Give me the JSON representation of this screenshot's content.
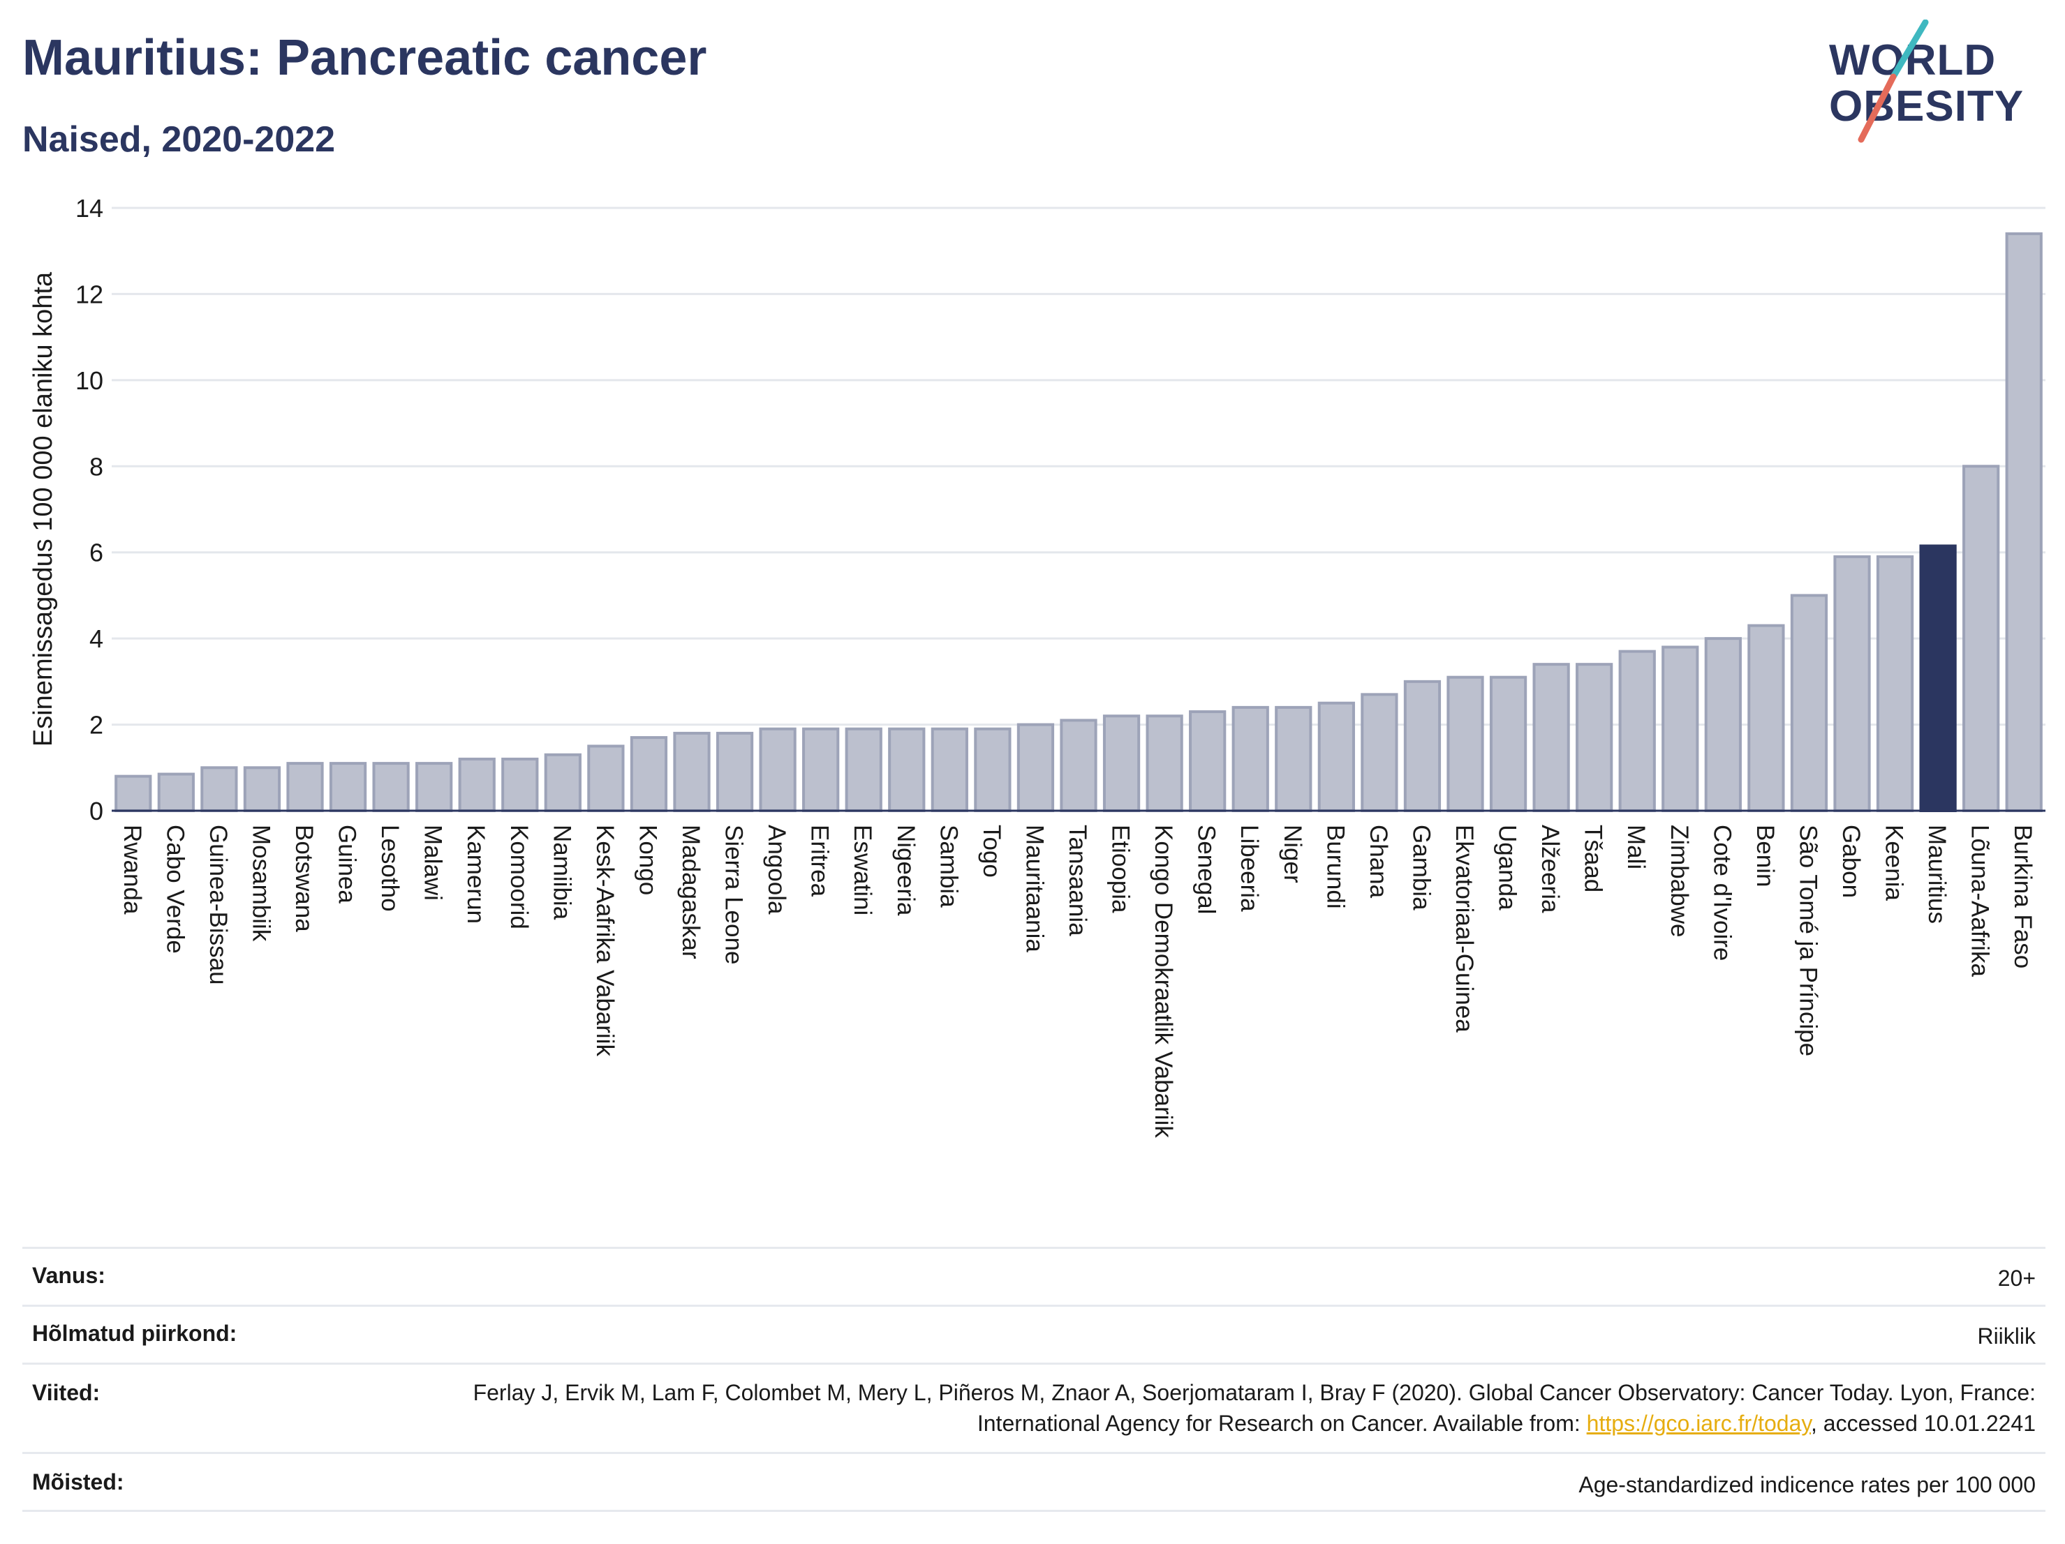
{
  "header": {
    "title": "Mauritius: Pancreatic cancer",
    "subtitle": "Naised, 2020-2022"
  },
  "logo": {
    "line1": "WORLD",
    "line2": "OBESITY"
  },
  "colors": {
    "bar_fill": "#bcc0ce",
    "bar_stroke": "#9da3b8",
    "highlight": "#2b3660",
    "title": "#2b3660",
    "logo_slash_teal": "#3fb8c0",
    "logo_slash_coral": "#e46b5a"
  },
  "chart_data": {
    "type": "bar",
    "ylabel": "Esinemissagedus 100 000 elaniku kohta",
    "ylim": [
      0,
      14
    ],
    "yticks": [
      0,
      2,
      4,
      6,
      8,
      10,
      12,
      14
    ],
    "grid": true,
    "highlight": "Mauritius",
    "categories": [
      "Rwanda",
      "Cabo Verde",
      "Guinea-Bissau",
      "Mosambiik",
      "Botswana",
      "Guinea",
      "Lesotho",
      "Malawi",
      "Kamerun",
      "Komoorid",
      "Namiibia",
      "Kesk-Aafrika Vabariik",
      "Kongo",
      "Madagaskar",
      "Sierra Leone",
      "Angoola",
      "Eritrea",
      "Eswatini",
      "Nigeeria",
      "Sambia",
      "Togo",
      "Mauritaania",
      "Tansaania",
      "Etioopia",
      "Kongo Demokraatlik Vabariik",
      "Senegal",
      "Libeeria",
      "Niger",
      "Burundi",
      "Ghana",
      "Gambia",
      "Ekvatoriaal-Guinea",
      "Uganda",
      "Alžeeria",
      "Tšaad",
      "Mali",
      "Zimbabwe",
      "Cote d'Ivoire",
      "Benin",
      "São Tomé ja Príncipe",
      "Gabon",
      "Keenia",
      "Mauritius",
      "Lõuna-Aafrika",
      "Burkina Faso"
    ],
    "values": [
      0.8,
      0.85,
      1.0,
      1.0,
      1.1,
      1.1,
      1.1,
      1.1,
      1.2,
      1.2,
      1.3,
      1.5,
      1.7,
      1.8,
      1.8,
      1.9,
      1.9,
      1.9,
      1.9,
      1.9,
      1.9,
      2.0,
      2.1,
      2.2,
      2.2,
      2.3,
      2.4,
      2.4,
      2.5,
      2.7,
      3.0,
      3.1,
      3.1,
      3.4,
      3.4,
      3.7,
      3.8,
      4.0,
      4.3,
      5.0,
      5.9,
      5.9,
      6.15,
      8.0,
      13.4
    ]
  },
  "footer": {
    "age_label": "Vanus:",
    "age_value": "20+",
    "region_label": "Hõlmatud piirkond:",
    "region_value": "Riiklik",
    "refs_label": "Viited:",
    "refs_text": "Ferlay J, Ervik M, Lam F, Colombet M, Mery L, Piñeros M, Znaor A, Soerjomataram I, Bray F (2020). Global Cancer Observatory: Cancer Today. Lyon, France: International Agency for Research on Cancer. Available from: ",
    "refs_link": "https://gco.iarc.fr/today",
    "refs_tail": ", accessed 10.01.2241",
    "def_label": "Mõisted:",
    "def_value": "Age-standardized indicence rates per 100 000"
  }
}
